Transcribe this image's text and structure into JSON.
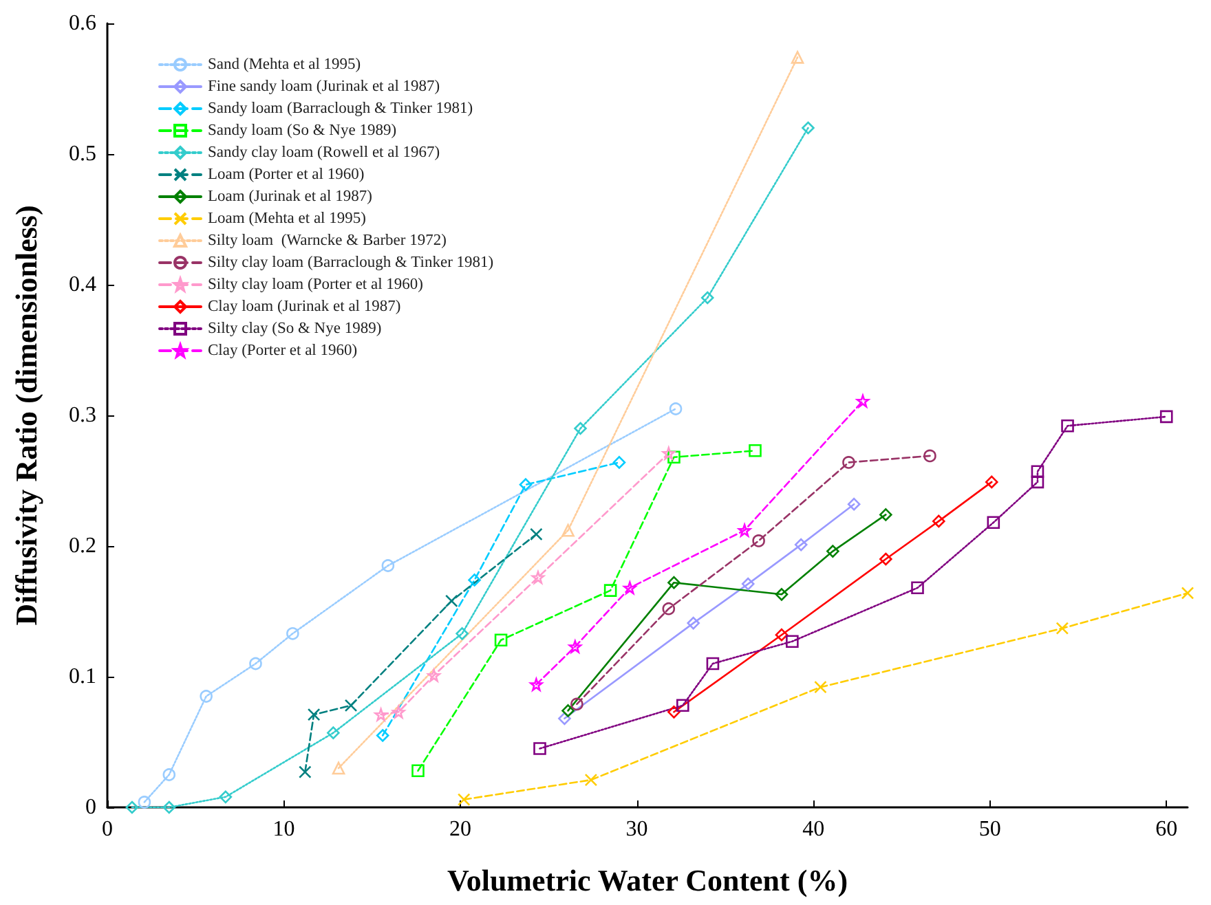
{
  "chart_data": {
    "type": "line",
    "xlabel": "Volumetric Water Content (%)",
    "ylabel": "Diffusivity Ratio (dimensionless)",
    "xlim": [
      0,
      61.2
    ],
    "ylim": [
      0,
      0.6
    ],
    "xticks": [
      0,
      10,
      20,
      30,
      40,
      50,
      60
    ],
    "yticks": [
      0,
      0.1,
      0.2,
      0.3,
      0.4,
      0.5,
      0.6
    ],
    "grid": false,
    "legend": "top left",
    "series": [
      {
        "name": "Sand (Mehta et al 1995)",
        "color": "#99ccff",
        "marker": "circle",
        "line_style": "dotted",
        "x": [
          2.1,
          3.5,
          5.6,
          8.4,
          10.5,
          15.9,
          32.2
        ],
        "values": [
          0.004,
          0.025,
          0.085,
          0.11,
          0.133,
          0.185,
          0.305
        ]
      },
      {
        "name": "Fine sandy loam (Jurinak et al 1987)",
        "color": "#9999ff",
        "marker": "diamond",
        "line_style": "solid",
        "x": [
          25.9,
          33.2,
          36.3,
          39.3,
          42.3
        ],
        "values": [
          0.068,
          0.141,
          0.171,
          0.201,
          0.232
        ]
      },
      {
        "name": "Sandy loam (Barraclough & Tinker 1981)",
        "color": "#00ccff",
        "marker": "diamond",
        "line_style": "dashed",
        "x": [
          15.6,
          20.8,
          23.7,
          29.0
        ],
        "values": [
          0.055,
          0.174,
          0.247,
          0.264
        ]
      },
      {
        "name": "Sandy loam (So & Nye 1989)",
        "color": "#00ff00",
        "marker": "square",
        "line_style": "dashed",
        "x": [
          17.6,
          22.3,
          28.5,
          32.1,
          36.7
        ],
        "values": [
          0.028,
          0.128,
          0.166,
          0.268,
          0.273
        ]
      },
      {
        "name": "Sandy clay loam (Rowell et al 1967)",
        "color": "#33cccc",
        "marker": "diamond",
        "line_style": "dotted",
        "x": [
          1.4,
          3.5,
          6.7,
          12.8,
          20.1,
          26.8,
          34.0,
          39.7
        ],
        "values": [
          0.0,
          0.0,
          0.008,
          0.057,
          0.133,
          0.29,
          0.39,
          0.52
        ]
      },
      {
        "name": "Loam (Porter et al 1960)",
        "color": "#008080",
        "marker": "cross",
        "line_style": "dashed",
        "x": [
          11.2,
          11.7,
          13.8,
          19.5,
          24.3
        ],
        "values": [
          0.027,
          0.071,
          0.078,
          0.158,
          0.209
        ]
      },
      {
        "name": "Loam (Jurinak et al 1987)",
        "color": "#008000",
        "marker": "diamond",
        "line_style": "solid",
        "x": [
          26.1,
          32.1,
          38.2,
          41.1,
          44.1
        ],
        "values": [
          0.074,
          0.172,
          0.163,
          0.196,
          0.224
        ]
      },
      {
        "name": "Loam (Mehta et al 1995)",
        "color": "#ffcc00",
        "marker": "cross",
        "line_style": "dashed",
        "x": [
          20.2,
          27.4,
          40.4,
          54.1,
          61.2
        ],
        "values": [
          0.006,
          0.021,
          0.092,
          0.137,
          0.164
        ]
      },
      {
        "name": "Silty loam  (Warncke & Barber 1972)",
        "color": "#ffcc99",
        "marker": "triangle",
        "line_style": "dotted",
        "x": [
          13.1,
          26.1,
          39.1
        ],
        "values": [
          0.03,
          0.212,
          0.574
        ]
      },
      {
        "name": "Silty clay loam (Barraclough & Tinker 1981)",
        "color": "#993366",
        "marker": "circle",
        "line_style": "dashed",
        "x": [
          26.6,
          31.8,
          36.9,
          42.0,
          46.6
        ],
        "values": [
          0.079,
          0.152,
          0.204,
          0.264,
          0.269
        ]
      },
      {
        "name": "Silty clay loam (Porter et al 1960)",
        "color": "#ff99cc",
        "marker": "star",
        "line_style": "dashed",
        "x": [
          15.5,
          16.5,
          18.5,
          24.4,
          31.8
        ],
        "values": [
          0.071,
          0.073,
          0.101,
          0.176,
          0.271
        ]
      },
      {
        "name": "Clay loam (Jurinak et al 1987)",
        "color": "#ff0000",
        "marker": "diamond",
        "line_style": "solid",
        "x": [
          32.1,
          38.2,
          44.1,
          47.1,
          50.1
        ],
        "values": [
          0.073,
          0.132,
          0.19,
          0.219,
          0.249
        ]
      },
      {
        "name": "Silty clay (So & Nye 1989)",
        "color": "#800080",
        "marker": "square",
        "line_style": "dotted",
        "x": [
          24.5,
          32.6,
          34.3,
          38.8,
          45.9,
          50.2,
          52.7,
          52.7,
          54.4,
          60.0
        ],
        "values": [
          0.045,
          0.078,
          0.11,
          0.127,
          0.168,
          0.218,
          0.249,
          0.257,
          0.292,
          0.299
        ]
      },
      {
        "name": "Clay (Porter et al 1960)",
        "color": "#ff00ff",
        "marker": "star",
        "line_style": "dashed",
        "x": [
          24.3,
          26.5,
          29.6,
          36.1,
          42.8
        ],
        "values": [
          0.094,
          0.123,
          0.168,
          0.212,
          0.311
        ]
      }
    ]
  }
}
